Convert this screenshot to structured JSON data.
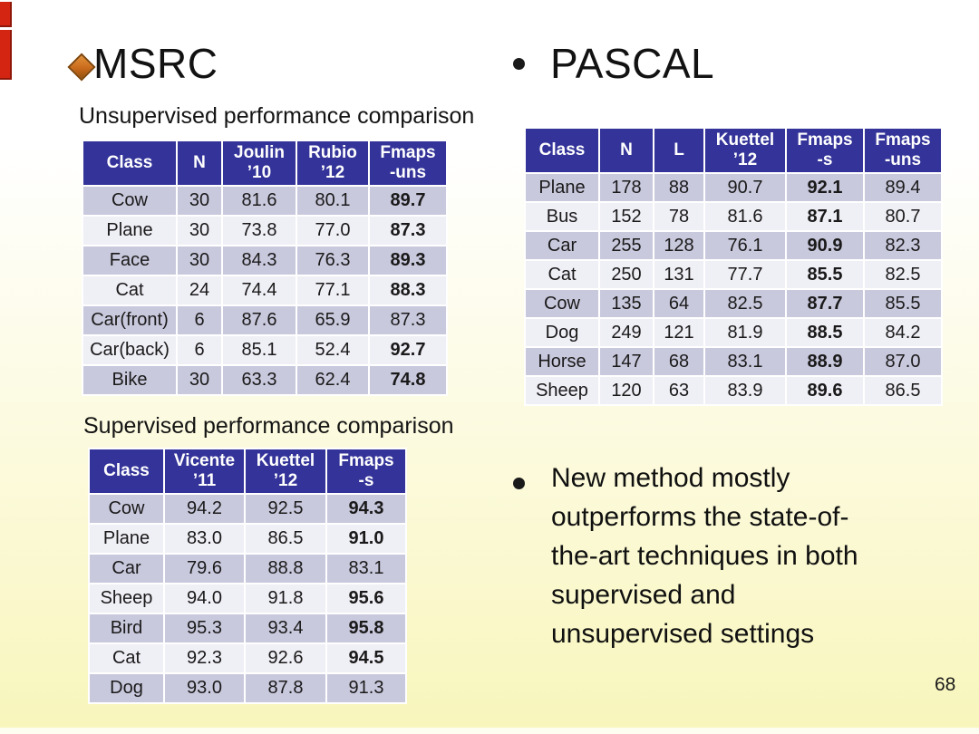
{
  "page_number": "68",
  "colors": {
    "table_header_bg": "#333399",
    "table_header_text": "#FFFFFF",
    "row_shade_dark": "#C9C9DE",
    "row_shade_light": "#EFEFF6",
    "slide_bg_top": "#FFFFFF",
    "slide_bg_bottom": "#F8F6BB",
    "diamond_accent": "#C96A1B",
    "edge_artifact_red": "#D32512"
  },
  "msrc": {
    "title": "MSRC",
    "unsupervised": {
      "caption": "Unsupervised performance comparison",
      "columns": [
        "Class",
        "N",
        "Joulin\n’10",
        "Rubio\n’12",
        "Fmaps\n-uns"
      ],
      "rows": [
        {
          "cells": [
            "Cow",
            "30",
            "81.6",
            "80.1",
            "89.7"
          ],
          "bold": [
            4
          ]
        },
        {
          "cells": [
            "Plane",
            "30",
            "73.8",
            "77.0",
            "87.3"
          ],
          "bold": [
            4
          ]
        },
        {
          "cells": [
            "Face",
            "30",
            "84.3",
            "76.3",
            "89.3"
          ],
          "bold": [
            4
          ]
        },
        {
          "cells": [
            "Cat",
            "24",
            "74.4",
            "77.1",
            "88.3"
          ],
          "bold": [
            4
          ]
        },
        {
          "cells": [
            "Car(front)",
            "6",
            "87.6",
            "65.9",
            "87.3"
          ],
          "bold": []
        },
        {
          "cells": [
            "Car(back)",
            "6",
            "85.1",
            "52.4",
            "92.7"
          ],
          "bold": [
            4
          ]
        },
        {
          "cells": [
            "Bike",
            "30",
            "63.3",
            "62.4",
            "74.8"
          ],
          "bold": [
            4
          ]
        }
      ]
    },
    "supervised": {
      "caption": "Supervised performance comparison",
      "columns": [
        "Class",
        "Vicente\n’11",
        "Kuettel\n’12",
        "Fmaps\n-s"
      ],
      "rows": [
        {
          "cells": [
            "Cow",
            "94.2",
            "92.5",
            "94.3"
          ],
          "bold": [
            3
          ]
        },
        {
          "cells": [
            "Plane",
            "83.0",
            "86.5",
            "91.0"
          ],
          "bold": [
            3
          ]
        },
        {
          "cells": [
            "Car",
            "79.6",
            "88.8",
            "83.1"
          ],
          "bold": []
        },
        {
          "cells": [
            "Sheep",
            "94.0",
            "91.8",
            "95.6"
          ],
          "bold": [
            3
          ]
        },
        {
          "cells": [
            "Bird",
            "95.3",
            "93.4",
            "95.8"
          ],
          "bold": [
            3
          ]
        },
        {
          "cells": [
            "Cat",
            "92.3",
            "92.6",
            "94.5"
          ],
          "bold": [
            3
          ]
        },
        {
          "cells": [
            "Dog",
            "93.0",
            "87.8",
            "91.3"
          ],
          "bold": []
        }
      ]
    }
  },
  "pascal": {
    "title": "PASCAL",
    "table": {
      "columns": [
        "Class",
        "N",
        "L",
        "Kuettel\n’12",
        "Fmaps\n-s",
        "Fmaps\n-uns"
      ],
      "rows": [
        {
          "cells": [
            "Plane",
            "178",
            "88",
            "90.7",
            "92.1",
            "89.4"
          ],
          "bold": [
            4
          ]
        },
        {
          "cells": [
            "Bus",
            "152",
            "78",
            "81.6",
            "87.1",
            "80.7"
          ],
          "bold": [
            4
          ]
        },
        {
          "cells": [
            "Car",
            "255",
            "128",
            "76.1",
            "90.9",
            "82.3"
          ],
          "bold": [
            4
          ]
        },
        {
          "cells": [
            "Cat",
            "250",
            "131",
            "77.7",
            "85.5",
            "82.5"
          ],
          "bold": [
            4
          ]
        },
        {
          "cells": [
            "Cow",
            "135",
            "64",
            "82.5",
            "87.7",
            "85.5"
          ],
          "bold": [
            4
          ]
        },
        {
          "cells": [
            "Dog",
            "249",
            "121",
            "81.9",
            "88.5",
            "84.2"
          ],
          "bold": [
            4
          ]
        },
        {
          "cells": [
            "Horse",
            "147",
            "68",
            "83.1",
            "88.9",
            "87.0"
          ],
          "bold": [
            4
          ]
        },
        {
          "cells": [
            "Sheep",
            "120",
            "63",
            "83.9",
            "89.6",
            "86.5"
          ],
          "bold": [
            4
          ]
        }
      ]
    },
    "bullet_lines": [
      "New method mostly",
      "outperforms the state-of-",
      "the-art techniques in both",
      "supervised and",
      "unsupervised settings"
    ]
  }
}
